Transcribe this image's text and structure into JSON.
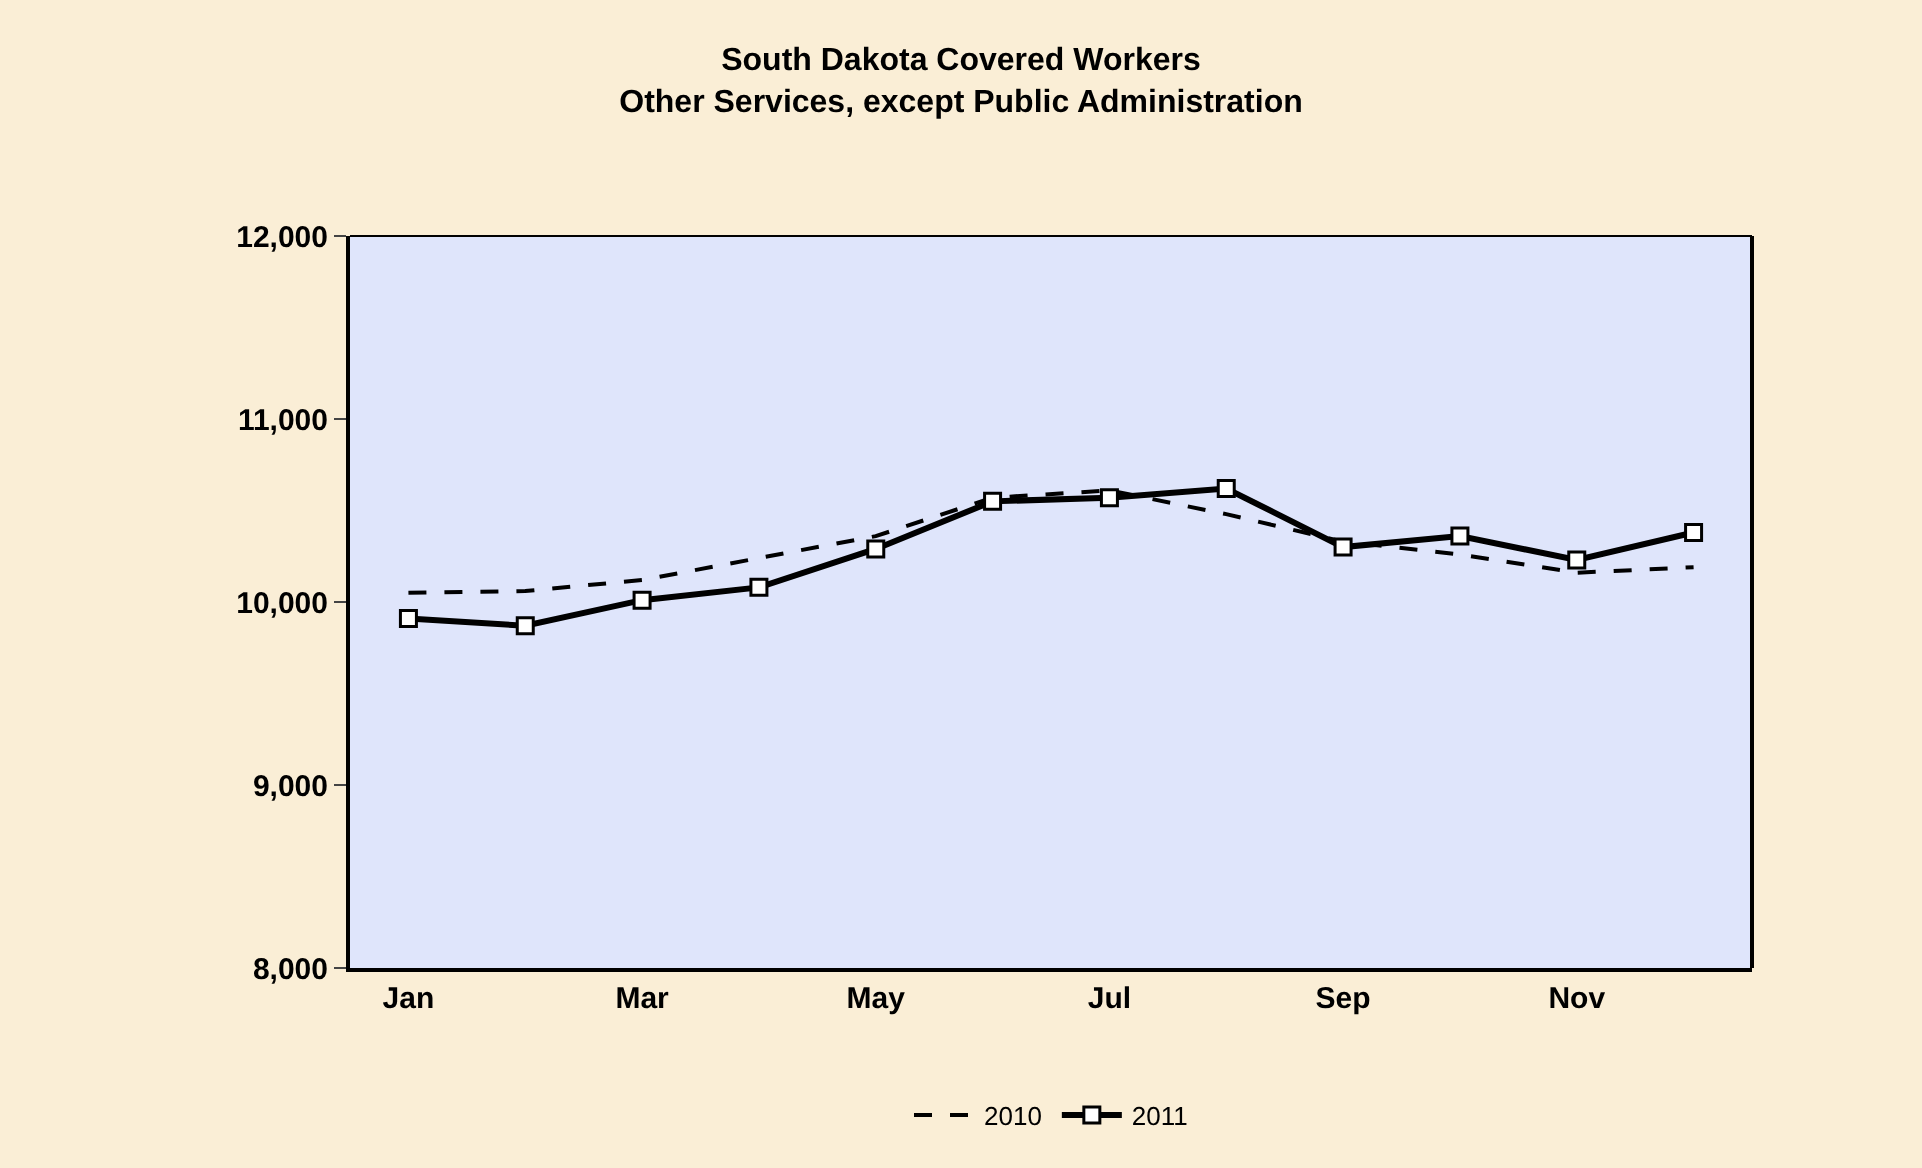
{
  "chart_data": {
    "type": "line",
    "title": "South Dakota Covered Workers\nOther Services, except Public Administration",
    "categories": [
      "Jan",
      null,
      "Mar",
      null,
      "May",
      null,
      "Jul",
      null,
      "Sep",
      null,
      "Nov",
      null
    ],
    "series": [
      {
        "name": "2010",
        "color": "#000000",
        "line_style": "dashed",
        "marker": "none",
        "values": [
          10050,
          10060,
          10120,
          10240,
          10360,
          10570,
          10610,
          10480,
          10330,
          10260,
          10160,
          10190
        ]
      },
      {
        "name": "2011",
        "color": "#000000",
        "line_style": "solid",
        "marker": "square",
        "values": [
          9910,
          9870,
          10010,
          10080,
          10290,
          10550,
          10570,
          10620,
          10300,
          10360,
          10230,
          10380
        ]
      }
    ],
    "ylim": [
      8000,
      12000
    ],
    "yticks": [
      {
        "value": 8000,
        "label": "8,000"
      },
      {
        "value": 9000,
        "label": "9,000"
      },
      {
        "value": 10000,
        "label": "10,000"
      },
      {
        "value": 11000,
        "label": "11,000"
      },
      {
        "value": 12000,
        "label": "12,000"
      }
    ],
    "grid": false,
    "legend": "bottom"
  }
}
